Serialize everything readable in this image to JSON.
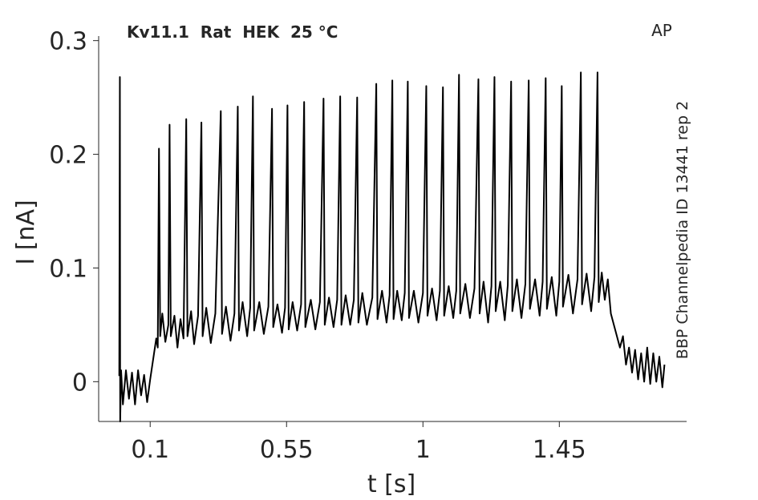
{
  "chart_data": {
    "type": "line",
    "title": "Kv11.1  Rat  HEK  25 °C",
    "corner_label": "AP",
    "side_label": "BBP Channelpedia ID 13441 rep 2",
    "x_label": "t [s]",
    "y_label": "I [nA]",
    "xlim": [
      -0.07,
      1.87
    ],
    "ylim": [
      -0.035,
      0.304
    ],
    "xticks": [
      0.1,
      0.55,
      1,
      1.45
    ],
    "yticks": [
      0,
      0.1,
      0.2,
      0.3
    ],
    "color": "#000000",
    "x": [
      -0.002,
      0,
      0.001,
      0.004,
      0.01,
      0.02,
      0.03,
      0.04,
      0.05,
      0.06,
      0.07,
      0.08,
      0.09,
      0.1,
      0.11,
      0.12,
      0.125,
      0.129,
      0.133,
      0.14,
      0.15,
      0.16,
      0.164,
      0.168,
      0.18,
      0.19,
      0.2,
      0.21,
      0.219,
      0.223,
      0.235,
      0.245,
      0.258,
      0.269,
      0.273,
      0.285,
      0.3,
      0.315,
      0.333,
      0.337,
      0.35,
      0.365,
      0.378,
      0.389,
      0.393,
      0.405,
      0.42,
      0.43,
      0.439,
      0.443,
      0.46,
      0.475,
      0.49,
      0.502,
      0.506,
      0.52,
      0.535,
      0.545,
      0.553,
      0.557,
      0.57,
      0.585,
      0.598,
      0.608,
      0.612,
      0.63,
      0.645,
      0.66,
      0.672,
      0.676,
      0.69,
      0.705,
      0.717,
      0.727,
      0.731,
      0.745,
      0.76,
      0.772,
      0.783,
      0.787,
      0.8,
      0.815,
      0.833,
      0.846,
      0.85,
      0.865,
      0.88,
      0.89,
      0.899,
      0.903,
      0.915,
      0.93,
      0.94,
      0.95,
      0.954,
      0.97,
      0.985,
      1.0,
      1.011,
      1.015,
      1.03,
      1.045,
      1.056,
      1.066,
      1.07,
      1.085,
      1.1,
      1.11,
      1.119,
      1.123,
      1.14,
      1.155,
      1.17,
      1.183,
      1.187,
      1.2,
      1.215,
      1.226,
      1.236,
      1.24,
      1.255,
      1.27,
      1.28,
      1.291,
      1.295,
      1.31,
      1.325,
      1.338,
      1.349,
      1.353,
      1.37,
      1.385,
      1.395,
      1.405,
      1.409,
      1.425,
      1.44,
      1.45,
      1.458,
      1.462,
      1.48,
      1.495,
      1.51,
      1.521,
      1.525,
      1.54,
      1.555,
      1.566,
      1.576,
      1.58,
      1.59,
      1.6,
      1.61,
      1.62,
      1.635,
      1.65,
      1.66,
      1.67,
      1.68,
      1.69,
      1.7,
      1.71,
      1.72,
      1.73,
      1.74,
      1.75,
      1.76,
      1.77,
      1.78,
      1.79,
      1.797
    ],
    "values": [
      0.005,
      0.268,
      -0.035,
      0.01,
      -0.02,
      0.01,
      -0.015,
      0.008,
      -0.02,
      0.01,
      -0.012,
      0.006,
      -0.018,
      0.002,
      0.02,
      0.038,
      0.03,
      0.205,
      0.04,
      0.06,
      0.035,
      0.05,
      0.226,
      0.04,
      0.058,
      0.03,
      0.055,
      0.038,
      0.231,
      0.04,
      0.062,
      0.033,
      0.058,
      0.228,
      0.04,
      0.065,
      0.034,
      0.06,
      0.238,
      0.042,
      0.066,
      0.036,
      0.06,
      0.242,
      0.045,
      0.07,
      0.04,
      0.065,
      0.251,
      0.045,
      0.07,
      0.042,
      0.066,
      0.24,
      0.048,
      0.068,
      0.043,
      0.065,
      0.243,
      0.046,
      0.07,
      0.045,
      0.068,
      0.246,
      0.048,
      0.072,
      0.046,
      0.07,
      0.249,
      0.05,
      0.074,
      0.048,
      0.072,
      0.251,
      0.05,
      0.076,
      0.05,
      0.072,
      0.25,
      0.052,
      0.078,
      0.05,
      0.074,
      0.262,
      0.055,
      0.08,
      0.052,
      0.076,
      0.265,
      0.055,
      0.08,
      0.054,
      0.078,
      0.264,
      0.056,
      0.08,
      0.052,
      0.078,
      0.26,
      0.058,
      0.082,
      0.054,
      0.08,
      0.259,
      0.058,
      0.084,
      0.056,
      0.08,
      0.27,
      0.06,
      0.086,
      0.056,
      0.082,
      0.266,
      0.06,
      0.088,
      0.052,
      0.084,
      0.268,
      0.062,
      0.088,
      0.054,
      0.085,
      0.264,
      0.062,
      0.09,
      0.056,
      0.086,
      0.265,
      0.064,
      0.09,
      0.058,
      0.088,
      0.267,
      0.064,
      0.092,
      0.058,
      0.088,
      0.26,
      0.066,
      0.094,
      0.06,
      0.09,
      0.272,
      0.068,
      0.095,
      0.062,
      0.092,
      0.272,
      0.07,
      0.096,
      0.072,
      0.09,
      0.06,
      0.045,
      0.03,
      0.04,
      0.015,
      0.03,
      0.008,
      0.028,
      0.002,
      0.025,
      0.0,
      0.03,
      -0.002,
      0.025,
      0.0,
      0.022,
      -0.005,
      0.015
    ]
  }
}
